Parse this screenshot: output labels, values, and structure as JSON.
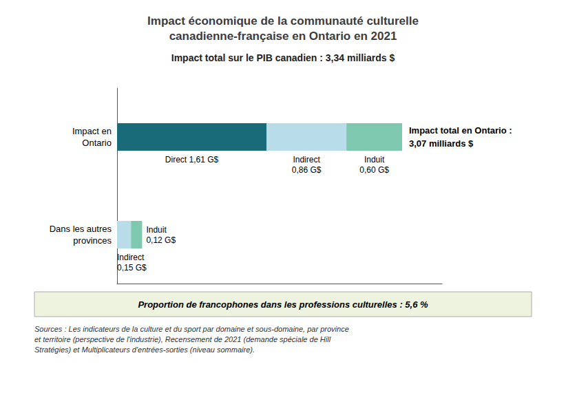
{
  "chart_data": {
    "type": "bar",
    "orientation": "horizontal",
    "stacked": true,
    "title": "Impact économique de la communauté culturelle\ncanadienne-française en Ontario en 2021",
    "subtitle": "Impact total sur le PIB canadien : 3,34 milliards $",
    "categories": [
      "Impact en\nOntario",
      "Dans les autres\nprovinces"
    ],
    "series": [
      {
        "name": "Direct",
        "color": "#1a6b7a",
        "values": [
          1.61,
          null
        ],
        "value_labels": [
          "Direct 1,61 G$",
          null
        ]
      },
      {
        "name": "Indirect",
        "color": "#b8dce8",
        "values": [
          0.86,
          0.15
        ],
        "value_labels": [
          "Indirect\n0,86 G$",
          "Indirect\n0,15 G$"
        ]
      },
      {
        "name": "Induit",
        "color": "#7ec8b0",
        "values": [
          0.6,
          0.12
        ],
        "value_labels": [
          "Induit\n0,60 G$",
          "Induit\n0,12 G$"
        ]
      }
    ],
    "xlim": [
      0,
      3.5
    ],
    "data_labels": true,
    "tick_labels": "y",
    "grid": false,
    "annotations": [
      {
        "text": "Impact total en Ontario :\n3,07 milliards $",
        "category": "Impact en\nOntario"
      },
      {
        "text": "Proportion de francophones dans les professions culturelles : 5,6 %",
        "color": "#eef3e0"
      },
      {
        "text": "Sources : Les indicateurs de la culture et du sport par domaine et sous-domaine, par province\net territoire (perspective de l'industrie), Recensement de 2021 (demande spéciale de Hill\nStratégies) et Multiplicateurs d'entrées-sorties (niveau sommaire)."
      }
    ]
  }
}
